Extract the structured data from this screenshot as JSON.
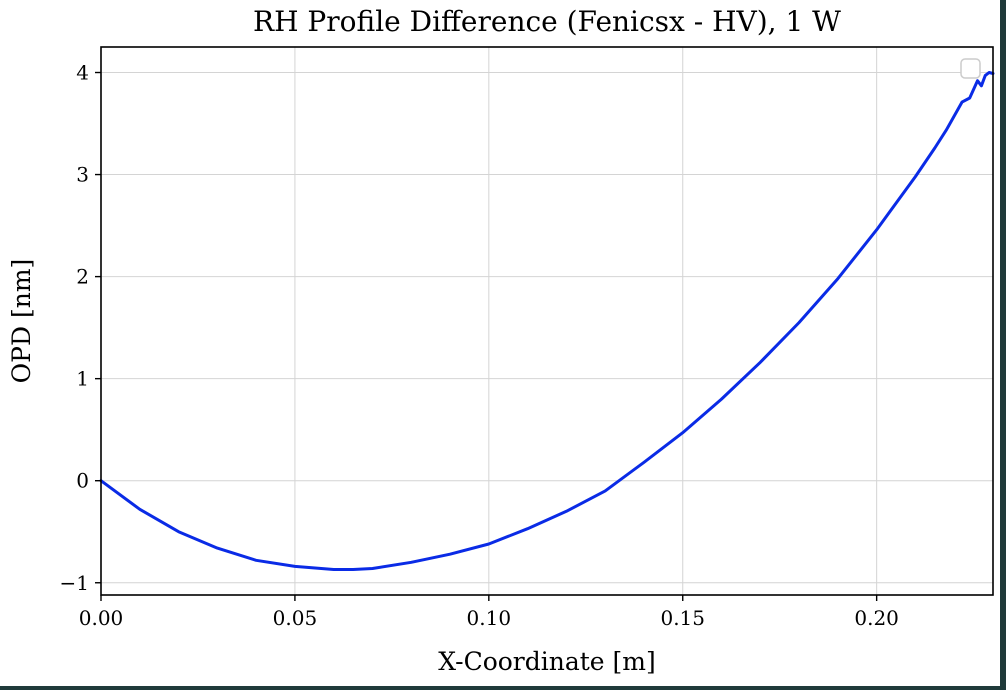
{
  "chart_data": {
    "type": "line",
    "title": "RH Profile Difference (Fenicsx - HV), 1 W",
    "xlabel": "X-Coordinate [m]",
    "ylabel": "OPD [nm]",
    "xlim": [
      0.0,
      0.23
    ],
    "ylim": [
      -1.12,
      4.25
    ],
    "xticks": [
      0.0,
      0.05,
      0.1,
      0.15,
      0.2
    ],
    "xtick_labels": [
      "0.00",
      "0.05",
      "0.10",
      "0.15",
      "0.20"
    ],
    "yticks": [
      -1,
      0,
      1,
      2,
      3,
      4
    ],
    "ytick_labels": [
      "−1",
      "0",
      "1",
      "2",
      "3",
      "4"
    ],
    "grid": true,
    "legend": "top-right (empty)",
    "series": [
      {
        "color": "#0a2be6",
        "x": [
          0.0,
          0.01,
          0.02,
          0.03,
          0.04,
          0.05,
          0.06,
          0.065,
          0.07,
          0.08,
          0.09,
          0.1,
          0.11,
          0.12,
          0.13,
          0.14,
          0.15,
          0.16,
          0.17,
          0.18,
          0.19,
          0.2,
          0.21,
          0.215,
          0.218,
          0.222,
          0.224,
          0.226,
          0.227,
          0.228,
          0.229,
          0.23
        ],
        "y": [
          0.0,
          -0.28,
          -0.5,
          -0.66,
          -0.78,
          -0.84,
          -0.87,
          -0.87,
          -0.86,
          -0.8,
          -0.72,
          -0.62,
          -0.47,
          -0.3,
          -0.1,
          0.18,
          0.47,
          0.8,
          1.16,
          1.55,
          1.98,
          2.46,
          2.98,
          3.26,
          3.44,
          3.71,
          3.75,
          3.92,
          3.87,
          3.97,
          4.0,
          3.99
        ]
      }
    ]
  }
}
